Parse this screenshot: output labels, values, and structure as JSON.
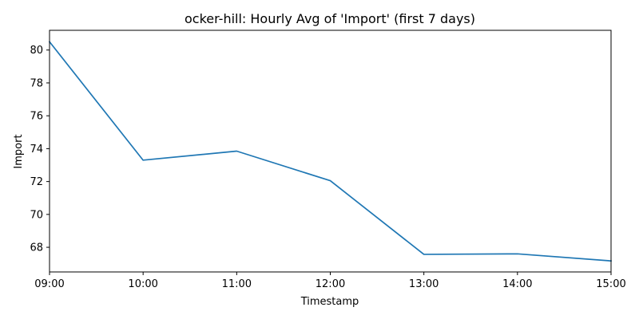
{
  "chart_data": {
    "type": "line",
    "title": "ocker-hill: Hourly Avg of 'Import' (first 7 days)",
    "xlabel": "Timestamp",
    "ylabel": "Import",
    "categories": [
      "09:00",
      "10:00",
      "11:00",
      "12:00",
      "13:00",
      "14:00",
      "15:00"
    ],
    "yticks": [
      68,
      70,
      72,
      74,
      76,
      78,
      80
    ],
    "ylim": [
      66.5,
      81.2
    ],
    "grid": false,
    "series": [
      {
        "color": "#1f77b4",
        "values": [
          80.5,
          73.3,
          73.85,
          72.05,
          67.57,
          67.6,
          67.17
        ]
      }
    ]
  }
}
